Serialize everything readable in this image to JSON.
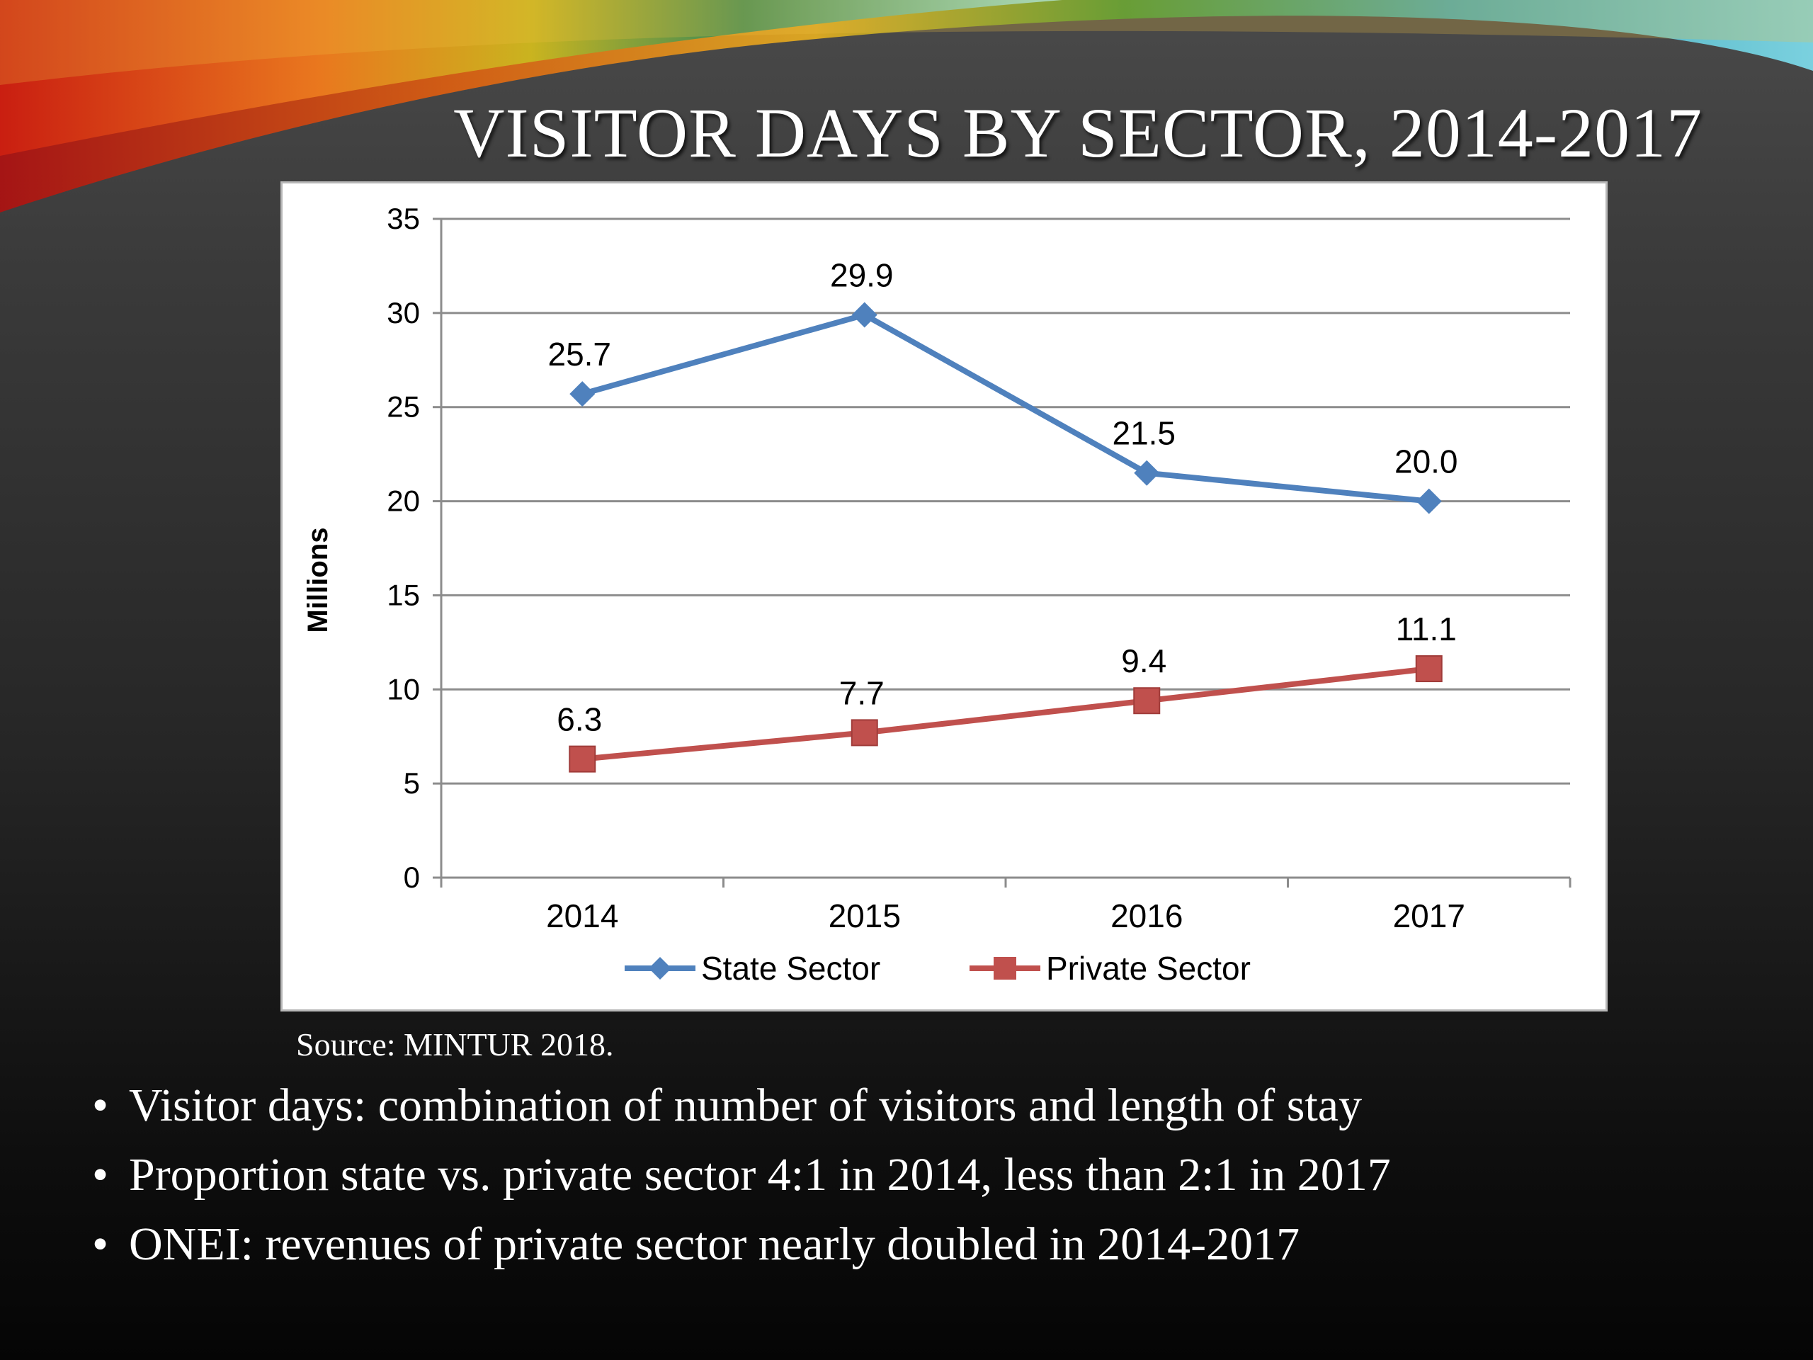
{
  "slide": {
    "title": "Visitor days by sector, 2014-2017",
    "source": "Source: MINTUR 2018.",
    "bullets": [
      "Visitor days: combination of number of visitors and length of stay",
      "Proportion state vs. private sector 4:1 in 2014, less than 2:1 in 2017",
      "ONEI: revenues of private sector nearly doubled in 2014-2017"
    ]
  },
  "chart_data": {
    "type": "line",
    "title": "",
    "xlabel": "",
    "ylabel": "Millions",
    "categories": [
      "2014",
      "2015",
      "2016",
      "2017"
    ],
    "ylim": [
      0,
      35
    ],
    "yticks": [
      "0",
      "5",
      "10",
      "15",
      "20",
      "25",
      "30",
      "35"
    ],
    "grid": true,
    "legend": "bottom",
    "series": [
      {
        "name": "State Sector",
        "values": [
          25.7,
          29.9,
          21.5,
          20.0
        ],
        "labels": [
          "25.7",
          "29.9",
          "21.5",
          "20.0"
        ],
        "color": "#4f81bd",
        "marker": "diamond"
      },
      {
        "name": "Private Sector",
        "values": [
          6.3,
          7.7,
          9.4,
          11.1
        ],
        "labels": [
          "6.3",
          "7.7",
          "9.4",
          "11.1"
        ],
        "color": "#c0504d",
        "marker": "square"
      }
    ]
  }
}
